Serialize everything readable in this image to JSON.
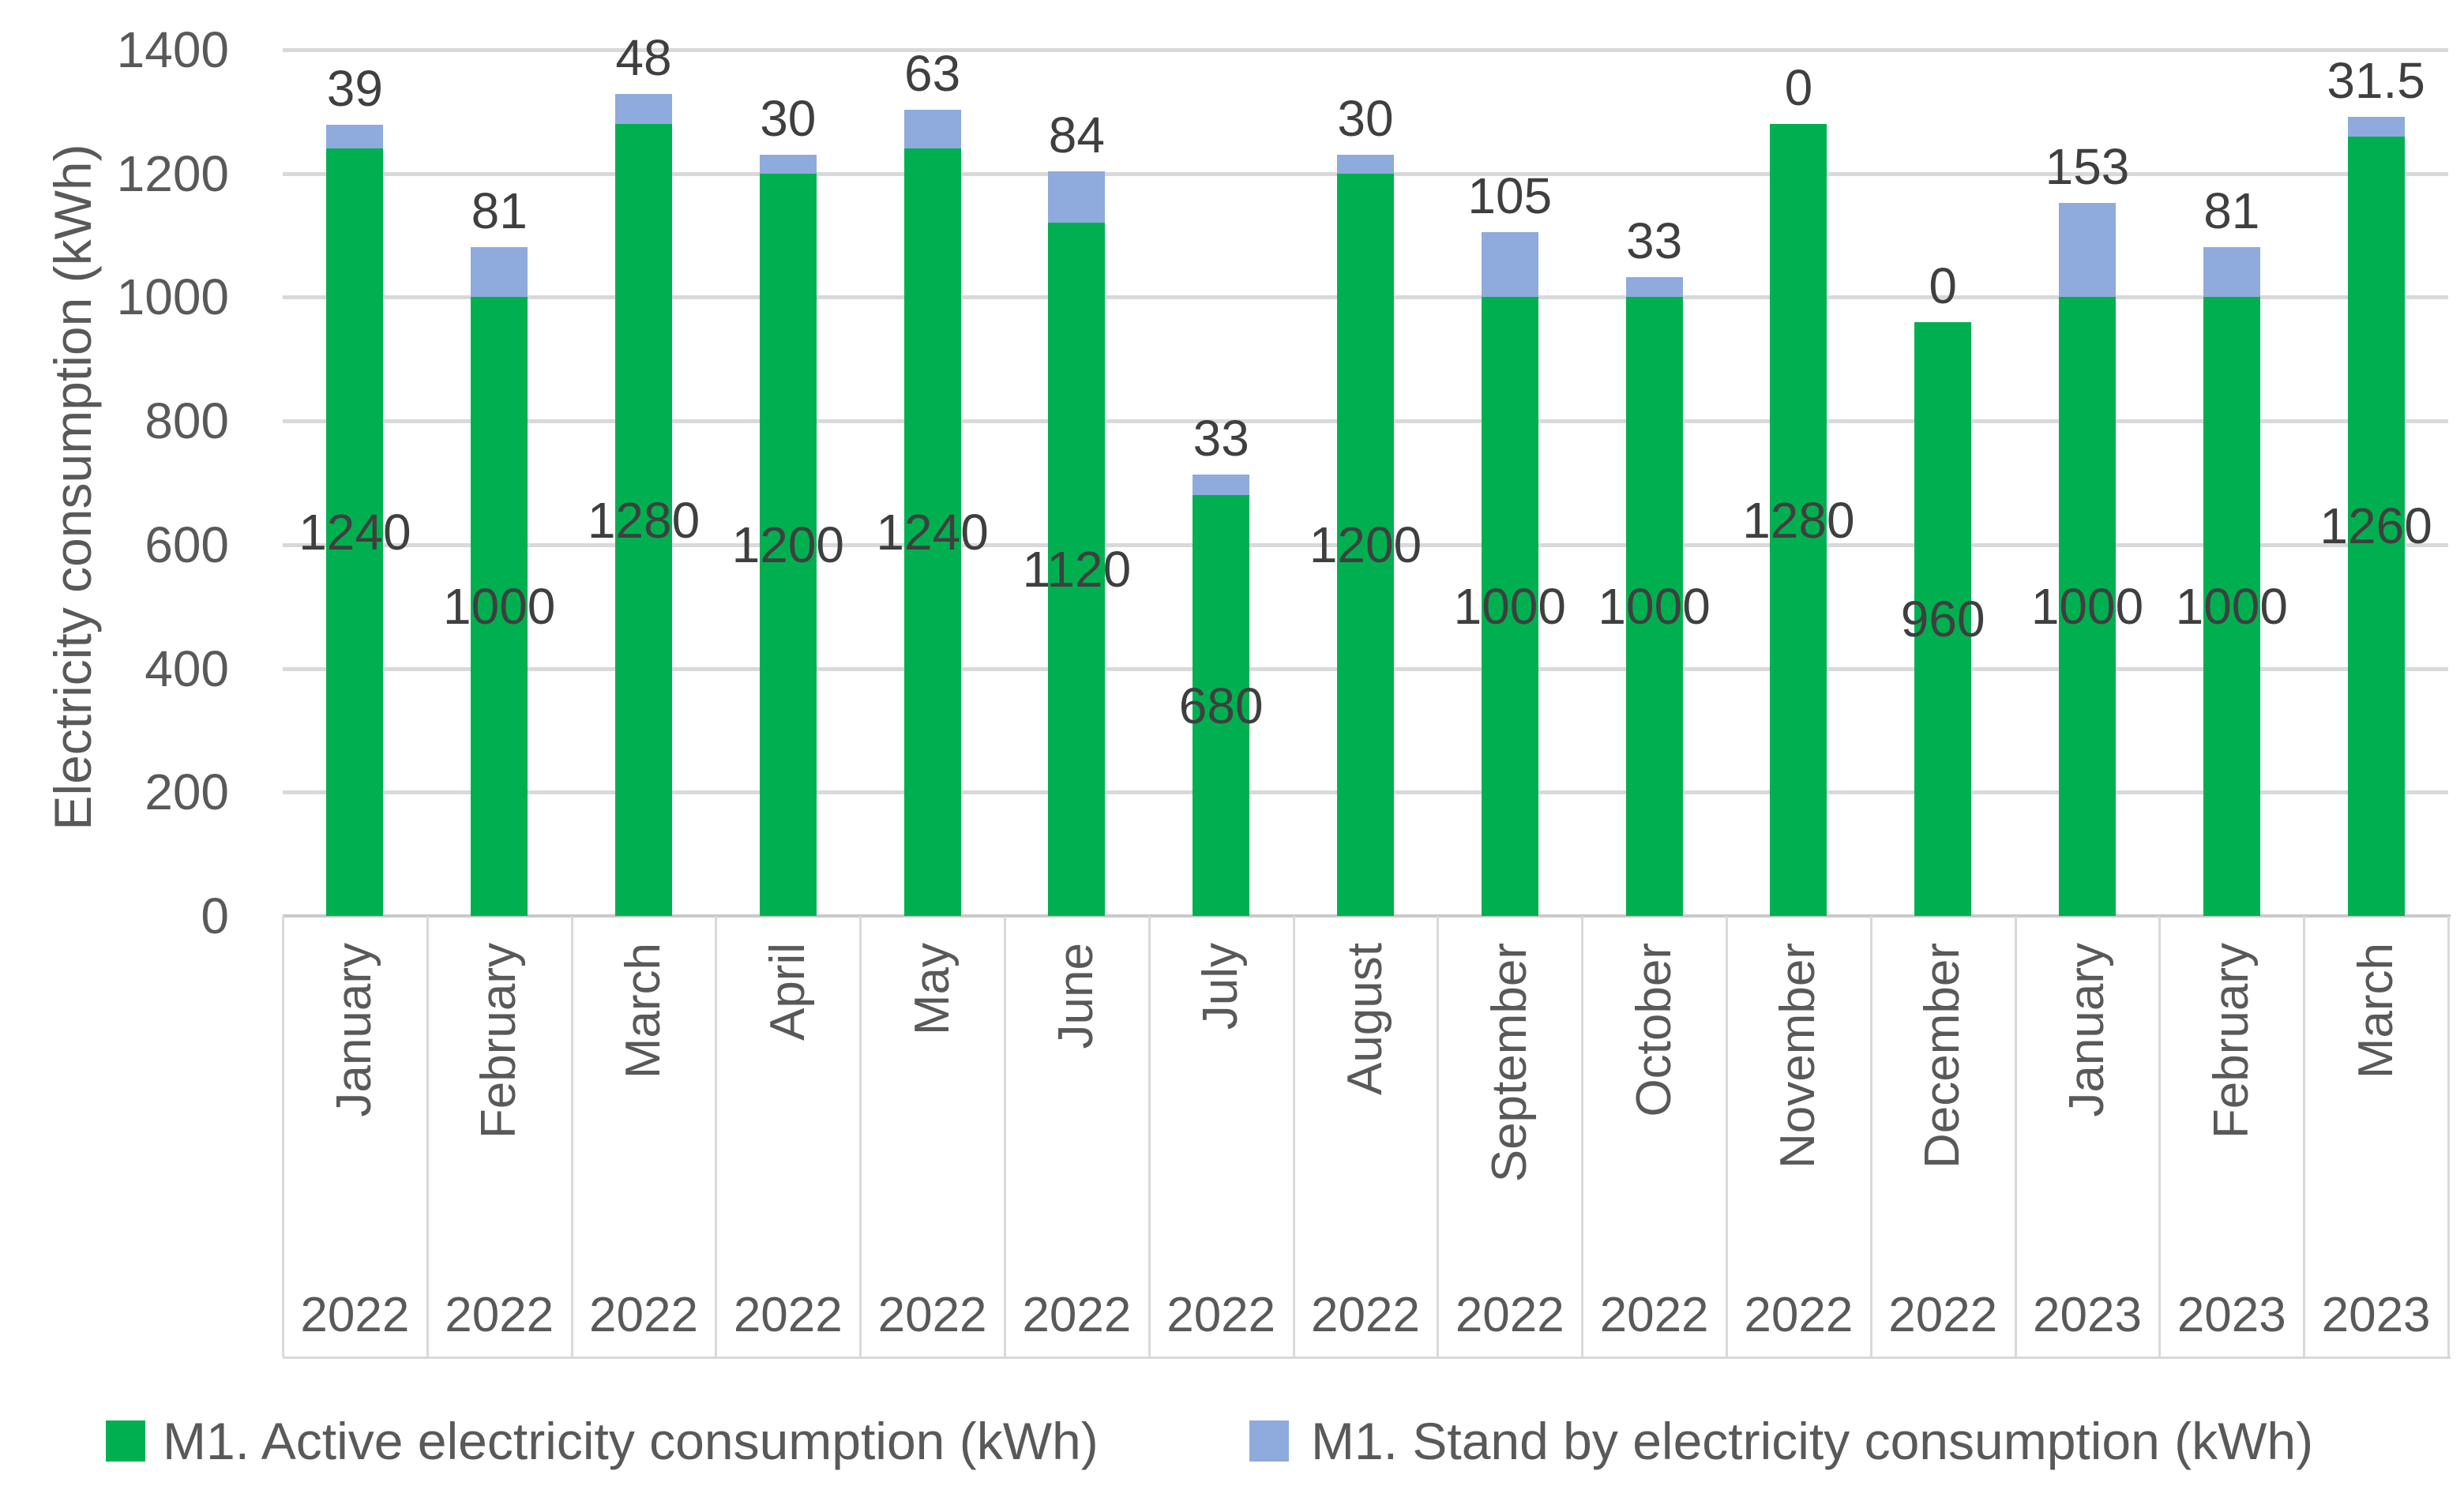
{
  "chart_data": {
    "type": "bar",
    "stacked": true,
    "title": "",
    "ylabel": "Electricity consumption (kWh)",
    "xlabel": "",
    "ylim": [
      0,
      1400
    ],
    "yticks": [
      0,
      200,
      400,
      600,
      800,
      1000,
      1200,
      1400
    ],
    "grid": true,
    "legend_position": "bottom",
    "categories_months": [
      "January",
      "February",
      "March",
      "April",
      "May",
      "June",
      "July",
      "August",
      "September",
      "October",
      "November",
      "December",
      "January",
      "February",
      "March"
    ],
    "categories_years": [
      "2022",
      "2022",
      "2022",
      "2022",
      "2022",
      "2022",
      "2022",
      "2022",
      "2022",
      "2022",
      "2022",
      "2022",
      "2023",
      "2023",
      "2023"
    ],
    "series": [
      {
        "name": "M1. Active electricity consumption (kWh)",
        "color": "#00B050",
        "values": [
          1240,
          1000,
          1280,
          1200,
          1240,
          1120,
          680,
          1200,
          1000,
          1000,
          1280,
          960,
          1000,
          1000,
          1260
        ]
      },
      {
        "name": "M1. Stand by electricity consumption (kWh)",
        "color": "#8FAADC",
        "values": [
          39,
          81,
          48,
          30,
          63,
          84,
          33,
          30,
          105,
          33,
          0,
          0,
          153,
          81,
          31.5
        ]
      }
    ]
  },
  "colors": {
    "gridline": "#d9d9d9",
    "axis_line": "#c9c9c9",
    "text_axis": "#595959",
    "text_data_label": "#3f3f3f",
    "background": "#ffffff"
  }
}
